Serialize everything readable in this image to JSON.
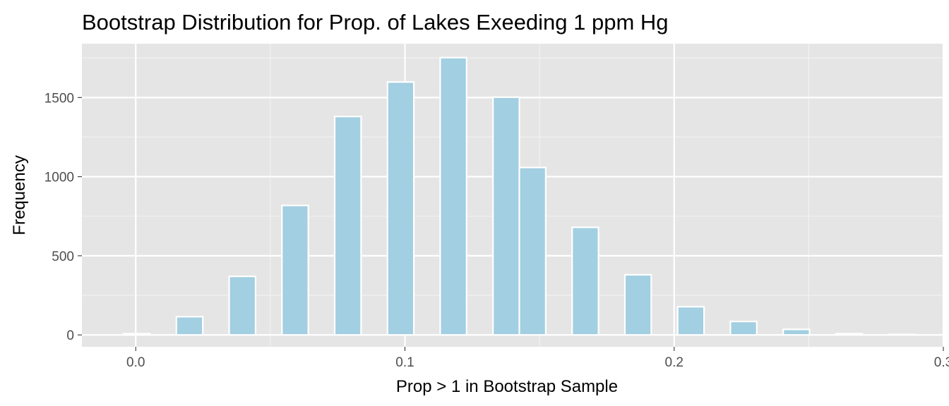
{
  "chart_data": {
    "type": "bar",
    "title": "Bootstrap Distribution for Prop. of Lakes Exeeding 1 ppm Hg",
    "xlabel": "Prop > 1 in Bootstrap Sample",
    "ylabel": "Frequency",
    "xlim": [
      -0.02,
      0.3
    ],
    "ylim": [
      -75,
      1840
    ],
    "x_ticks": [
      0.0,
      0.1,
      0.2,
      0.3
    ],
    "x_tick_labels": [
      "0.0",
      "0.1",
      "0.2",
      "0.3"
    ],
    "y_ticks": [
      0,
      500,
      1000,
      1500
    ],
    "y_tick_labels": [
      "0",
      "500",
      "1000",
      "1500"
    ],
    "bin_width": 0.0098,
    "bins": [
      {
        "x": 0.0004,
        "count": 8
      },
      {
        "x": 0.02,
        "count": 115
      },
      {
        "x": 0.0396,
        "count": 370
      },
      {
        "x": 0.0592,
        "count": 818
      },
      {
        "x": 0.0788,
        "count": 1380
      },
      {
        "x": 0.0984,
        "count": 1598
      },
      {
        "x": 0.118,
        "count": 1752
      },
      {
        "x": 0.1376,
        "count": 1502
      },
      {
        "x": 0.1474,
        "count": 1058
      },
      {
        "x": 0.167,
        "count": 680
      },
      {
        "x": 0.1866,
        "count": 380
      },
      {
        "x": 0.2062,
        "count": 178
      },
      {
        "x": 0.2258,
        "count": 85
      },
      {
        "x": 0.2454,
        "count": 35
      },
      {
        "x": 0.265,
        "count": 8
      },
      {
        "x": 0.2846,
        "count": 3
      }
    ],
    "bar_fill": "#a2cfe1",
    "bar_outline": "#ffffff",
    "panel_background": "#e5e5e5",
    "grid": true
  }
}
